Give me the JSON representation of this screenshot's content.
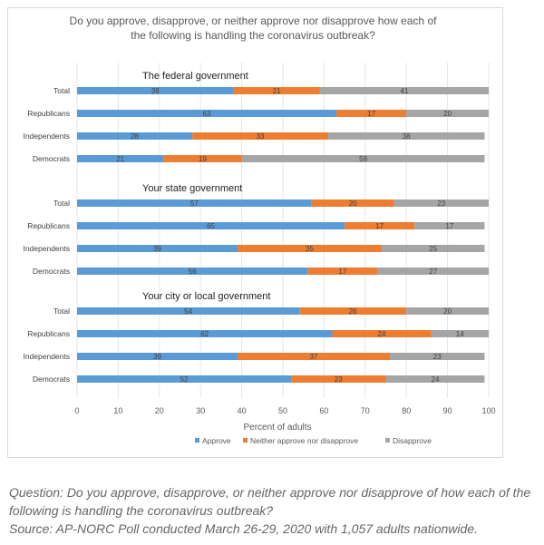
{
  "chart_data": {
    "type": "bar",
    "orientation": "horizontal",
    "stacked": true,
    "title": "Do you approve, disapprove, or neither approve nor disapprove how each of the following is handling the coronavirus outbreak?",
    "xlabel": "Percent of adults",
    "ylabel": "",
    "xlim": [
      0,
      100
    ],
    "x_ticks": [
      "0",
      "10",
      "20",
      "30",
      "40",
      "50",
      "60",
      "70",
      "80",
      "90",
      "100"
    ],
    "grid": true,
    "legend_position": "bottom",
    "colors": {
      "approve": "#5b9bd5",
      "neither": "#ed7d31",
      "disapprove": "#a5a5a5"
    },
    "series": [
      {
        "name": "Approve",
        "key": "approve"
      },
      {
        "name": "Neither approve nor disapprove",
        "key": "neither"
      },
      {
        "name": "Disapprove",
        "key": "disapprove"
      }
    ],
    "groups": [
      {
        "title": "The federal government",
        "categories": [
          "Total",
          "Republicans",
          "Independents",
          "Democrats"
        ],
        "approve": [
          38,
          63,
          28,
          21
        ],
        "neither": [
          21,
          17,
          33,
          19
        ],
        "disapprove": [
          41,
          20,
          38,
          59
        ]
      },
      {
        "title": "Your state government",
        "categories": [
          "Total",
          "Republicans",
          "Independents",
          "Democrats"
        ],
        "approve": [
          57,
          65,
          39,
          56
        ],
        "neither": [
          20,
          17,
          35,
          17
        ],
        "disapprove": [
          23,
          17,
          25,
          27
        ]
      },
      {
        "title": "Your city or local government",
        "categories": [
          "Total",
          "Republicans",
          "Independents",
          "Democrats"
        ],
        "approve": [
          54,
          62,
          39,
          52
        ],
        "neither": [
          26,
          24,
          37,
          23
        ],
        "disapprove": [
          20,
          14,
          23,
          24
        ]
      }
    ]
  },
  "caption": {
    "question": "Question: Do you approve, disapprove, or neither approve nor disapprove of how each of the following is handling the coronavirus outbreak?",
    "source": "Source: AP-NORC Poll conducted March 26-29, 2020 with 1,057 adults nationwide."
  }
}
